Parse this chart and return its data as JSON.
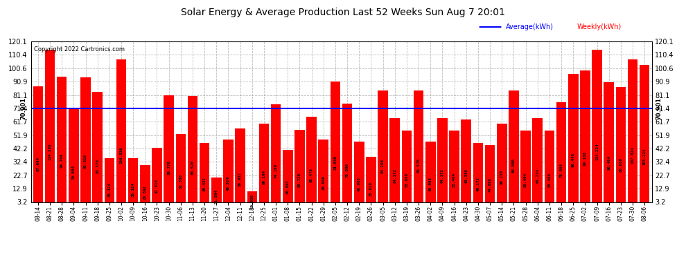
{
  "title": "Solar Energy & Average Production Last 52 Weeks Sun Aug 7 20:01",
  "copyright": "Copyright 2022 Cartronics.com",
  "average_line": 71.4,
  "ylim": [
    3.2,
    120.1
  ],
  "yticks": [
    3.2,
    12.9,
    22.7,
    32.4,
    42.2,
    51.9,
    61.7,
    71.4,
    81.1,
    90.9,
    100.6,
    110.4,
    120.1
  ],
  "bar_color": "#ff0000",
  "avg_line_color": "#0000ff",
  "legend_avg_color": "#0000ff",
  "legend_weekly_color": "#ff0000",
  "background_color": "#ffffff",
  "grid_color": "#aaaaaa",
  "ylabel_rotated": "70.901",
  "categories": [
    "08-14",
    "08-21",
    "08-28",
    "09-04",
    "09-11",
    "09-18",
    "09-25",
    "10-02",
    "10-09",
    "10-16",
    "10-23",
    "10-30",
    "11-06",
    "11-13",
    "11-20",
    "11-27",
    "12-04",
    "12-11",
    "12-18",
    "12-25",
    "01-01",
    "01-08",
    "01-15",
    "01-22",
    "01-29",
    "02-05",
    "02-12",
    "02-19",
    "02-26",
    "03-05",
    "03-12",
    "03-19",
    "03-26",
    "04-02",
    "04-09",
    "04-16",
    "04-23",
    "04-30",
    "05-07",
    "05-14",
    "05-21",
    "05-28",
    "06-04",
    "06-11",
    "06-18",
    "06-25",
    "07-02",
    "07-09",
    "07-16",
    "07-23",
    "07-30",
    "08-06"
  ],
  "values": [
    87.664,
    114.28,
    94.704,
    70.664,
    93.816,
    83.576,
    35.124,
    106.836,
    35.124,
    29.892,
    42.816,
    80.776,
    52.56,
    80.52,
    46.432,
    21.084,
    48.524,
    56.952,
    10.828,
    60.164,
    74.18,
    40.992,
    55.72,
    65.476,
    48.9,
    91.096,
    75.096,
    46.988,
    35.92,
    84.296,
    64.172,
    55.06,
    84.576,
    46.988,
    64.172,
    55.464,
    63.388,
    46.172,
    44.888,
    60.23,
    84.6,
    55.464,
    64.234,
    55.464,
    75.904,
    96.44,
    99.1,
    114.224,
    90.464,
    86.68,
    107.024,
    103.224
  ],
  "bar_labels": [
    "87.664",
    "114.280",
    "94.704",
    "70.664",
    "93.816",
    "83.576",
    "35.124",
    "106.836",
    "35.124",
    "29.892",
    "42.816",
    "80.776",
    "52.560",
    "80.520",
    "46.432",
    "21.084",
    "48.524",
    "56.952",
    "10.828",
    "60.164",
    "74.180",
    "40.992",
    "55.720",
    "65.476",
    "48.900",
    "91.096",
    "75.096",
    "46.988",
    "35.920",
    "84.296",
    "64.172",
    "55.060",
    "84.576",
    "46.988",
    "64.172",
    "55.464",
    "63.388",
    "46.172",
    "44.888",
    "60.230",
    "84.600",
    "55.464",
    "64.234",
    "55.464",
    "75.904",
    "96.440",
    "99.100",
    "114.224",
    "90.464",
    "86.680",
    "107.024",
    "103.224"
  ]
}
